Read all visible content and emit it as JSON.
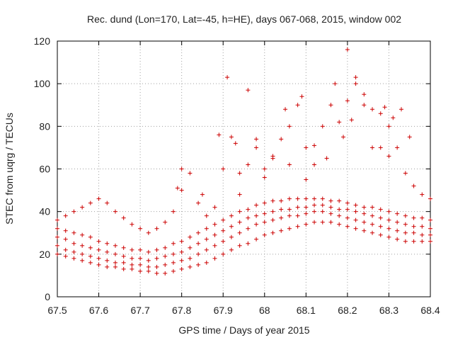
{
  "chart_data": {
    "type": "scatter",
    "title": "Rec. dund (Lon=170, Lat=-45, h=HE), days 067-068, 2015, window 002",
    "xlabel": "GPS time / Days of year 2015",
    "ylabel": "STEC from uqrg / TECUs",
    "xlim": [
      67.5,
      68.4
    ],
    "ylim": [
      0,
      120
    ],
    "xticks": [
      67.5,
      67.6,
      67.7,
      67.8,
      67.9,
      68.0,
      68.1,
      68.2,
      68.3,
      68.4
    ],
    "xtick_labels": [
      "67.5",
      "67.6",
      "67.7",
      "67.8",
      "67.9",
      "68",
      "68.1",
      "68.2",
      "68.3",
      "68.4"
    ],
    "yticks": [
      0,
      20,
      40,
      60,
      80,
      100,
      120
    ],
    "ytick_labels": [
      "0",
      "20",
      "40",
      "60",
      "80",
      "100",
      "120"
    ],
    "grid": true,
    "marker": "+",
    "color": "#cc0000",
    "series": [
      {
        "values": [
          [
            67.5,
            20
          ],
          [
            67.52,
            19
          ],
          [
            67.54,
            18
          ],
          [
            67.56,
            17
          ],
          [
            67.58,
            16
          ],
          [
            67.6,
            15
          ],
          [
            67.62,
            14
          ],
          [
            67.64,
            14
          ],
          [
            67.66,
            13
          ],
          [
            67.68,
            13
          ],
          [
            67.7,
            12
          ],
          [
            67.72,
            12
          ],
          [
            67.74,
            11
          ],
          [
            67.76,
            11
          ],
          [
            67.78,
            12
          ],
          [
            67.8,
            13
          ],
          [
            67.82,
            14
          ],
          [
            67.84,
            15
          ],
          [
            67.86,
            16
          ],
          [
            67.88,
            18
          ],
          [
            67.9,
            20
          ],
          [
            67.92,
            22
          ],
          [
            67.94,
            24
          ],
          [
            67.96,
            25
          ],
          [
            67.98,
            27
          ],
          [
            68.0,
            29
          ],
          [
            68.02,
            30
          ],
          [
            68.04,
            31
          ],
          [
            68.06,
            32
          ],
          [
            68.08,
            33
          ],
          [
            68.1,
            34
          ],
          [
            68.12,
            35
          ],
          [
            68.14,
            35
          ],
          [
            68.16,
            35
          ],
          [
            68.18,
            34
          ],
          [
            68.2,
            33
          ],
          [
            68.22,
            32
          ],
          [
            68.24,
            31
          ],
          [
            68.26,
            30
          ],
          [
            68.28,
            29
          ],
          [
            68.3,
            28
          ],
          [
            68.32,
            27
          ],
          [
            68.34,
            26
          ],
          [
            68.36,
            26
          ],
          [
            68.38,
            26
          ],
          [
            68.4,
            26
          ]
        ]
      },
      {
        "values": [
          [
            67.5,
            24
          ],
          [
            67.52,
            22
          ],
          [
            67.54,
            21
          ],
          [
            67.56,
            20
          ],
          [
            67.58,
            19
          ],
          [
            67.6,
            18
          ],
          [
            67.62,
            17
          ],
          [
            67.64,
            16
          ],
          [
            67.66,
            16
          ],
          [
            67.68,
            15
          ],
          [
            67.7,
            15
          ],
          [
            67.72,
            14
          ],
          [
            67.74,
            14
          ],
          [
            67.76,
            15
          ],
          [
            67.78,
            16
          ],
          [
            67.8,
            17
          ],
          [
            67.82,
            18
          ],
          [
            67.84,
            20
          ],
          [
            67.86,
            22
          ],
          [
            67.88,
            24
          ],
          [
            67.9,
            26
          ],
          [
            67.92,
            28
          ],
          [
            67.94,
            30
          ],
          [
            67.96,
            32
          ],
          [
            67.98,
            34
          ],
          [
            68.0,
            35
          ],
          [
            68.02,
            36
          ],
          [
            68.04,
            37
          ],
          [
            68.06,
            38
          ],
          [
            68.08,
            38
          ],
          [
            68.1,
            39
          ],
          [
            68.12,
            40
          ],
          [
            68.14,
            40
          ],
          [
            68.16,
            39
          ],
          [
            68.18,
            38
          ],
          [
            68.2,
            37
          ],
          [
            68.22,
            36
          ],
          [
            68.24,
            35
          ],
          [
            68.26,
            34
          ],
          [
            68.28,
            33
          ],
          [
            68.3,
            32
          ],
          [
            68.32,
            31
          ],
          [
            68.34,
            30
          ],
          [
            68.36,
            30
          ],
          [
            68.38,
            29
          ],
          [
            68.4,
            29
          ]
        ]
      },
      {
        "values": [
          [
            67.5,
            28
          ],
          [
            67.52,
            27
          ],
          [
            67.54,
            25
          ],
          [
            67.56,
            24
          ],
          [
            67.58,
            23
          ],
          [
            67.6,
            22
          ],
          [
            67.62,
            21
          ],
          [
            67.64,
            20
          ],
          [
            67.66,
            19
          ],
          [
            67.68,
            18
          ],
          [
            67.7,
            18
          ],
          [
            67.72,
            17
          ],
          [
            67.74,
            18
          ],
          [
            67.76,
            19
          ],
          [
            67.78,
            20
          ],
          [
            67.8,
            21
          ],
          [
            67.82,
            23
          ],
          [
            67.84,
            25
          ],
          [
            67.86,
            27
          ],
          [
            67.88,
            29
          ],
          [
            67.9,
            31
          ],
          [
            67.92,
            33
          ],
          [
            67.94,
            35
          ],
          [
            67.96,
            37
          ],
          [
            67.98,
            38
          ],
          [
            68.0,
            39
          ],
          [
            68.02,
            40
          ],
          [
            68.04,
            41
          ],
          [
            68.06,
            41
          ],
          [
            68.08,
            42
          ],
          [
            68.1,
            42
          ],
          [
            68.12,
            43
          ],
          [
            68.14,
            43
          ],
          [
            68.16,
            42
          ],
          [
            68.18,
            41
          ],
          [
            68.2,
            41
          ],
          [
            68.22,
            40
          ],
          [
            68.24,
            39
          ],
          [
            68.26,
            38
          ],
          [
            68.28,
            37
          ],
          [
            68.3,
            36
          ],
          [
            68.32,
            35
          ],
          [
            68.34,
            34
          ],
          [
            68.36,
            33
          ],
          [
            68.38,
            33
          ],
          [
            68.4,
            32
          ]
        ]
      },
      {
        "values": [
          [
            67.5,
            32
          ],
          [
            67.52,
            31
          ],
          [
            67.54,
            30
          ],
          [
            67.56,
            29
          ],
          [
            67.58,
            28
          ],
          [
            67.6,
            26
          ],
          [
            67.62,
            25
          ],
          [
            67.64,
            24
          ],
          [
            67.66,
            23
          ],
          [
            67.68,
            22
          ],
          [
            67.7,
            22
          ],
          [
            67.72,
            21
          ],
          [
            67.74,
            22
          ],
          [
            67.76,
            23
          ],
          [
            67.78,
            25
          ],
          [
            67.8,
            26
          ],
          [
            67.82,
            28
          ],
          [
            67.84,
            30
          ],
          [
            67.86,
            32
          ],
          [
            67.88,
            34
          ],
          [
            67.9,
            36
          ],
          [
            67.92,
            38
          ],
          [
            67.94,
            40
          ],
          [
            67.96,
            41
          ],
          [
            67.98,
            43
          ],
          [
            68.0,
            44
          ],
          [
            68.02,
            45
          ],
          [
            68.04,
            45
          ],
          [
            68.06,
            46
          ],
          [
            68.08,
            46
          ],
          [
            68.1,
            46
          ],
          [
            68.12,
            46
          ],
          [
            68.14,
            46
          ],
          [
            68.16,
            45
          ],
          [
            68.18,
            45
          ],
          [
            68.2,
            44
          ],
          [
            68.22,
            43
          ],
          [
            68.24,
            42
          ],
          [
            68.26,
            42
          ],
          [
            68.28,
            41
          ],
          [
            68.3,
            40
          ],
          [
            68.32,
            39
          ],
          [
            68.34,
            38
          ],
          [
            68.36,
            37
          ],
          [
            68.38,
            37
          ],
          [
            68.4,
            36
          ]
        ]
      },
      {
        "values": [
          [
            67.5,
            36
          ],
          [
            67.52,
            38
          ],
          [
            67.54,
            40
          ],
          [
            67.56,
            42
          ],
          [
            67.58,
            44
          ],
          [
            67.6,
            46
          ],
          [
            67.62,
            44
          ],
          [
            67.64,
            40
          ],
          [
            67.66,
            37
          ],
          [
            67.68,
            34
          ],
          [
            67.7,
            32
          ],
          [
            67.72,
            30
          ],
          [
            67.74,
            32
          ],
          [
            67.76,
            35
          ],
          [
            67.78,
            40
          ],
          [
            67.8,
            50
          ],
          [
            67.82,
            58
          ],
          [
            67.84,
            44
          ],
          [
            67.86,
            38
          ],
          [
            67.88,
            42
          ],
          [
            67.9,
            60
          ],
          [
            67.92,
            75
          ],
          [
            67.94,
            58
          ],
          [
            67.96,
            62
          ],
          [
            67.98,
            70
          ],
          [
            68.0,
            60
          ],
          [
            68.02,
            66
          ],
          [
            68.04,
            74
          ],
          [
            68.06,
            80
          ],
          [
            68.08,
            90
          ],
          [
            68.1,
            70
          ],
          [
            68.12,
            62
          ],
          [
            68.14,
            80
          ],
          [
            68.16,
            90
          ],
          [
            68.18,
            82
          ],
          [
            68.2,
            92
          ],
          [
            68.22,
            100
          ],
          [
            68.24,
            90
          ],
          [
            68.26,
            70
          ],
          [
            68.28,
            86
          ],
          [
            68.3,
            80
          ],
          [
            68.32,
            70
          ],
          [
            68.34,
            58
          ],
          [
            68.36,
            52
          ],
          [
            68.38,
            48
          ],
          [
            68.4,
            46
          ]
        ]
      },
      {
        "values": [
          [
            67.91,
            103
          ],
          [
            67.96,
            97
          ],
          [
            68.05,
            88
          ],
          [
            68.09,
            94
          ],
          [
            68.17,
            100
          ],
          [
            68.2,
            116
          ],
          [
            68.22,
            103
          ],
          [
            68.24,
            95
          ],
          [
            68.19,
            75
          ],
          [
            68.21,
            83
          ],
          [
            68.26,
            88
          ],
          [
            68.29,
            89
          ],
          [
            68.31,
            84
          ],
          [
            68.33,
            88
          ],
          [
            68.35,
            75
          ],
          [
            68.28,
            70
          ],
          [
            68.3,
            66
          ],
          [
            68.12,
            71
          ],
          [
            68.15,
            65
          ],
          [
            68.1,
            55
          ],
          [
            68.06,
            62
          ],
          [
            68.02,
            65
          ],
          [
            67.98,
            74
          ],
          [
            67.93,
            72
          ],
          [
            67.89,
            76
          ],
          [
            68.0,
            56
          ],
          [
            67.94,
            48
          ],
          [
            67.85,
            48
          ],
          [
            67.8,
            60
          ],
          [
            67.79,
            51
          ]
        ]
      }
    ]
  }
}
